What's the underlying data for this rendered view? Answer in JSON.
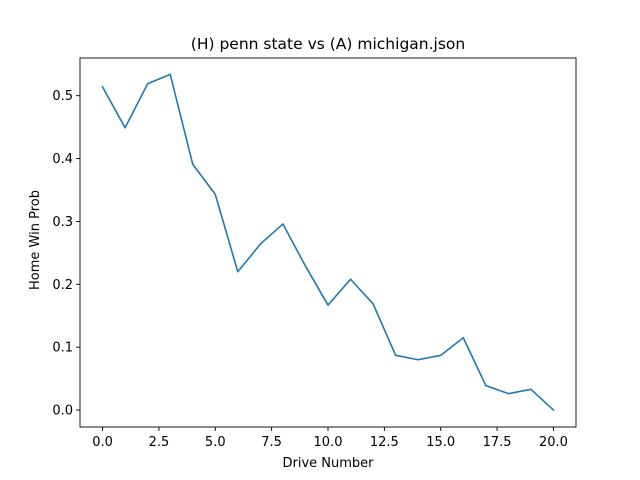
{
  "chart_data": {
    "type": "line",
    "title": "(H) penn state vs (A) michigan.json",
    "xlabel": "Drive Number",
    "ylabel": "Home Win Prob",
    "xlim": [
      -1.0,
      21.0
    ],
    "ylim": [
      -0.027,
      0.56
    ],
    "xticks": [
      0.0,
      2.5,
      5.0,
      7.5,
      10.0,
      12.5,
      15.0,
      17.5,
      20.0
    ],
    "xtick_labels": [
      "0.0",
      "2.5",
      "5.0",
      "7.5",
      "10.0",
      "12.5",
      "15.0",
      "17.5",
      "20.0"
    ],
    "yticks": [
      0.0,
      0.1,
      0.2,
      0.3,
      0.4,
      0.5
    ],
    "ytick_labels": [
      "0.0",
      "0.1",
      "0.2",
      "0.3",
      "0.4",
      "0.5"
    ],
    "grid": false,
    "legend": false,
    "line_color": "#1f77b4",
    "series": [
      {
        "x": [
          0,
          1,
          2,
          3,
          4,
          5,
          6,
          7,
          8,
          9,
          10,
          11,
          12,
          13,
          14,
          15,
          16,
          17,
          18,
          19,
          20
        ],
        "values": [
          0.514,
          0.449,
          0.519,
          0.534,
          0.391,
          0.343,
          0.22,
          0.264,
          0.296,
          0.229,
          0.167,
          0.208,
          0.169,
          0.087,
          0.08,
          0.087,
          0.115,
          0.039,
          0.026,
          0.033,
          0.0
        ]
      }
    ]
  }
}
